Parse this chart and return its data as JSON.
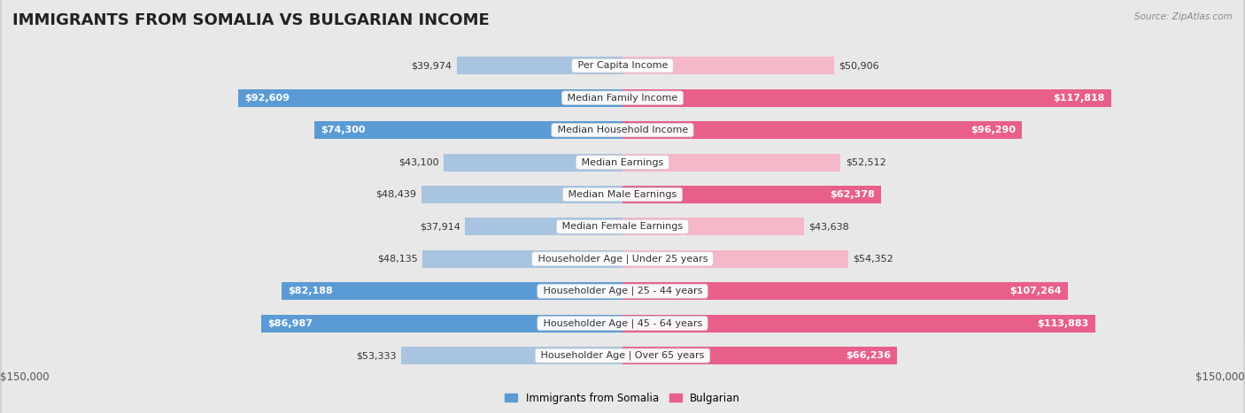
{
  "title": "IMMIGRANTS FROM SOMALIA VS BULGARIAN INCOME",
  "source": "Source: ZipAtlas.com",
  "categories": [
    "Per Capita Income",
    "Median Family Income",
    "Median Household Income",
    "Median Earnings",
    "Median Male Earnings",
    "Median Female Earnings",
    "Householder Age | Under 25 years",
    "Householder Age | 25 - 44 years",
    "Householder Age | 45 - 64 years",
    "Householder Age | Over 65 years"
  ],
  "somalia_values": [
    39974,
    92609,
    74300,
    43100,
    48439,
    37914,
    48135,
    82188,
    86987,
    53333
  ],
  "bulgarian_values": [
    50906,
    117818,
    96290,
    52512,
    62378,
    43638,
    54352,
    107264,
    113883,
    66236
  ],
  "somalia_labels": [
    "$39,974",
    "$92,609",
    "$74,300",
    "$43,100",
    "$48,439",
    "$37,914",
    "$48,135",
    "$82,188",
    "$86,987",
    "$53,333"
  ],
  "bulgarian_labels": [
    "$50,906",
    "$117,818",
    "$96,290",
    "$52,512",
    "$62,378",
    "$43,638",
    "$54,352",
    "$107,264",
    "$113,883",
    "$66,236"
  ],
  "somalia_color_light": "#a8c4e0",
  "somalia_color_dark": "#5b9bd5",
  "bulgarian_color_light": "#f4b8c8",
  "bulgarian_color_dark": "#e8608a",
  "max_value": 150000,
  "x_tick_label_left": "$150,000",
  "x_tick_label_right": "$150,000",
  "legend_somalia": "Immigrants from Somalia",
  "legend_bulgarian": "Bulgarian",
  "background_color": "#f0f0f0",
  "row_bg_color": "#ffffff",
  "row_alt_color": "#e8e8e8",
  "title_fontsize": 13,
  "label_fontsize": 8,
  "category_fontsize": 8,
  "large_threshold": 60000
}
